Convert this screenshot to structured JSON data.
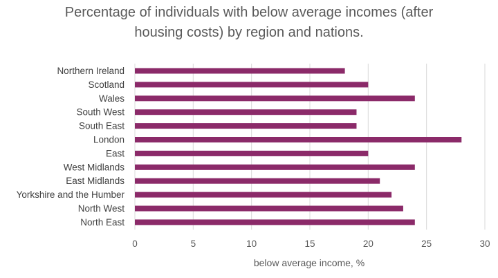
{
  "chart_data": {
    "type": "bar",
    "orientation": "horizontal",
    "title_lines": [
      "Percentage of individuals with below average incomes (after",
      "housing costs) by region and nations."
    ],
    "xlabel": "below average income, %",
    "ylabel": "",
    "xlim": [
      0,
      30
    ],
    "x_ticks": [
      "0",
      "5",
      "10",
      "15",
      "20",
      "25",
      "30"
    ],
    "grid": "vertical",
    "legend": "none",
    "bar_color": "#8B2A69",
    "categories": [
      "Northern Ireland",
      "Scotland",
      "Wales",
      "South West",
      "South East",
      "London",
      "East",
      "West Midlands",
      "East Midlands",
      "Yorkshire and the Humber",
      "North West",
      "North East"
    ],
    "values": [
      18,
      20,
      24,
      19,
      19,
      28,
      20,
      24,
      21,
      22,
      23,
      24
    ]
  }
}
